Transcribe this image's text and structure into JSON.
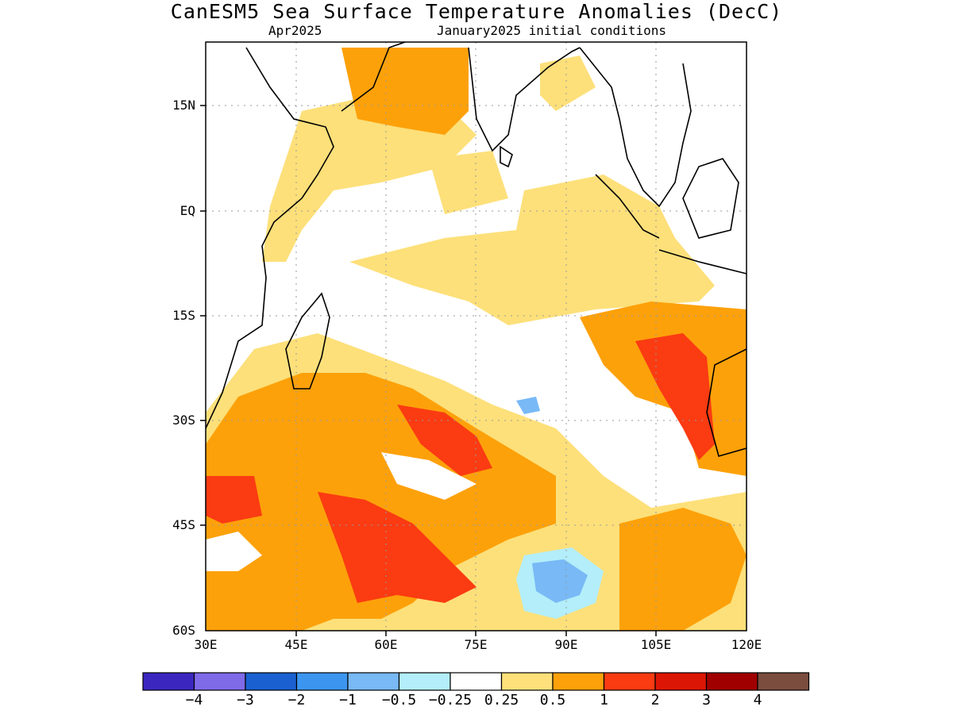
{
  "title": "CanESM5 Sea Surface Temperature Anomalies (DecC)",
  "subtitle_left": "Apr2025",
  "subtitle_right": "January2025 initial conditions",
  "y_ticks": [
    "15N",
    "EQ",
    "15S",
    "30S",
    "45S",
    "60S"
  ],
  "x_ticks": [
    "30E",
    "45E",
    "60E",
    "75E",
    "90E",
    "105E",
    "120E"
  ],
  "colorbar": {
    "colors": [
      "#3b27c0",
      "#7f6ae8",
      "#1a60d0",
      "#3c96f0",
      "#78b9f6",
      "#b3eefa",
      "#ffffff",
      "#fde07a",
      "#fda10a",
      "#fb3b12",
      "#dc1605",
      "#a00000",
      "#7a4d3f"
    ],
    "labels": [
      "−4",
      "−3",
      "−2",
      "−1",
      "−0.5",
      "−0.25",
      "0.25",
      "0.5",
      "1",
      "2",
      "3",
      "4"
    ]
  }
}
